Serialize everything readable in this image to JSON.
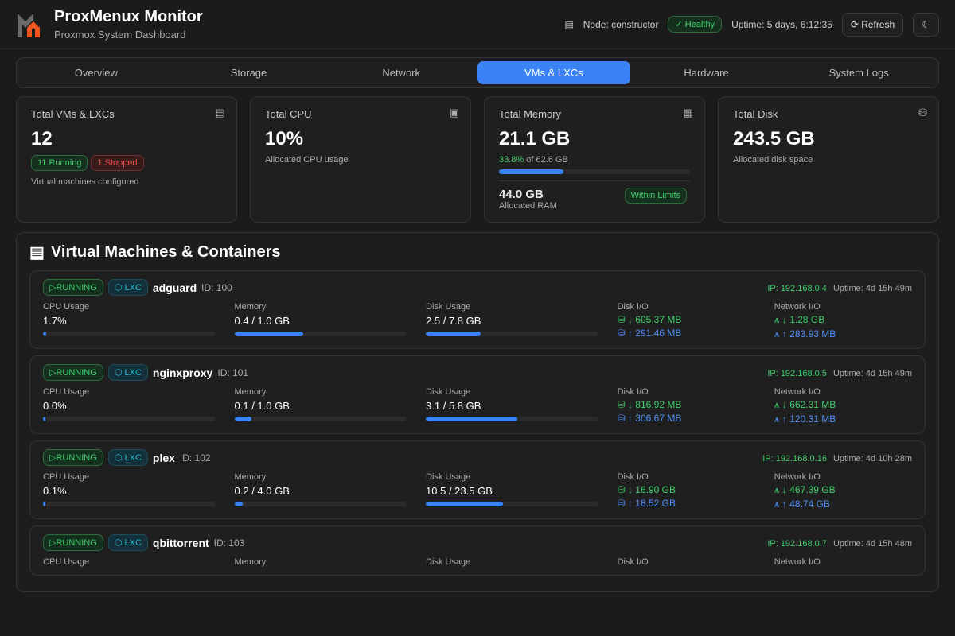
{
  "header": {
    "node_label": "Node: constructor",
    "health": "Healthy",
    "uptime": "Uptime: 5 days, 6:12:35",
    "refresh_label": "Refresh",
    "title": "ProxMenux Monitor",
    "subtitle": "Proxmox System Dashboard"
  },
  "tabs": [
    {
      "label": "Overview"
    },
    {
      "label": "Storage"
    },
    {
      "label": "Network"
    },
    {
      "label": "VMs & LXCs",
      "active": true
    },
    {
      "label": "Hardware"
    },
    {
      "label": "System Logs"
    }
  ],
  "cards": {
    "vms": {
      "title": "Total VMs & LXCs",
      "value": "12",
      "running": "11 Running",
      "stopped": "1 Stopped",
      "note": "Virtual machines configured"
    },
    "cpu": {
      "title": "Total CPU",
      "value": "10%",
      "note": "Allocated CPU usage"
    },
    "memory": {
      "title": "Total Memory",
      "value": "21.1 GB",
      "percent_text": "33.8%",
      "of_text": "of 62.6 GB",
      "percent": 33.8,
      "allocated": "44.0 GB",
      "allocated_label": "Allocated RAM",
      "status": "Within Limits"
    },
    "disk": {
      "title": "Total Disk",
      "value": "243.5 GB",
      "note": "Allocated disk space"
    }
  },
  "section": {
    "title": "Virtual Machines & Containers",
    "labels": {
      "cpu": "CPU Usage",
      "memory": "Memory",
      "disk": "Disk Usage",
      "diskio": "Disk I/O",
      "netio": "Network I/O"
    }
  },
  "vms": [
    {
      "status": "RUNNING",
      "type": "LXC",
      "name": "adguard",
      "id": "ID: 100",
      "ip": "IP: 192.168.0.4",
      "uptime": "Uptime: 4d 15h 49m",
      "cpu": "1.7%",
      "cpu_pct": 1.7,
      "mem": "0.4 / 1.0 GB",
      "mem_pct": 40,
      "disk": "2.5 / 7.8 GB",
      "disk_pct": 32,
      "disk_read": "↓ 605.37 MB",
      "disk_write": "↑ 291.46 MB",
      "net_in": "↓ 1.28 GB",
      "net_out": "↑ 283.93 MB"
    },
    {
      "status": "RUNNING",
      "type": "LXC",
      "name": "nginxproxy",
      "id": "ID: 101",
      "ip": "IP: 192.168.0.5",
      "uptime": "Uptime: 4d 15h 49m",
      "cpu": "0.0%",
      "cpu_pct": 0,
      "mem": "0.1 / 1.0 GB",
      "mem_pct": 10,
      "disk": "3.1 / 5.8 GB",
      "disk_pct": 53,
      "disk_read": "↓ 816.92 MB",
      "disk_write": "↑ 306.67 MB",
      "net_in": "↓ 662.31 MB",
      "net_out": "↑ 120.31 MB"
    },
    {
      "status": "RUNNING",
      "type": "LXC",
      "name": "plex",
      "id": "ID: 102",
      "ip": "IP: 192.168.0.16",
      "uptime": "Uptime: 4d 10h 28m",
      "cpu": "0.1%",
      "cpu_pct": 0.1,
      "mem": "0.2 / 4.0 GB",
      "mem_pct": 5,
      "disk": "10.5 / 23.5 GB",
      "disk_pct": 45,
      "disk_read": "↓ 16.90 GB",
      "disk_write": "↑ 18.52 GB",
      "net_in": "↓ 467.39 GB",
      "net_out": "↑ 48.74 GB"
    },
    {
      "status": "RUNNING",
      "type": "LXC",
      "name": "qbittorrent",
      "id": "ID: 103",
      "ip": "IP: 192.168.0.7",
      "uptime": "Uptime: 4d 15h 48m"
    }
  ],
  "colors": {
    "accent": "#3b82f6",
    "success": "#3ecf6a",
    "danger": "#f05252",
    "lxc": "#22b8cf",
    "logo_orange": "#f0541e"
  }
}
